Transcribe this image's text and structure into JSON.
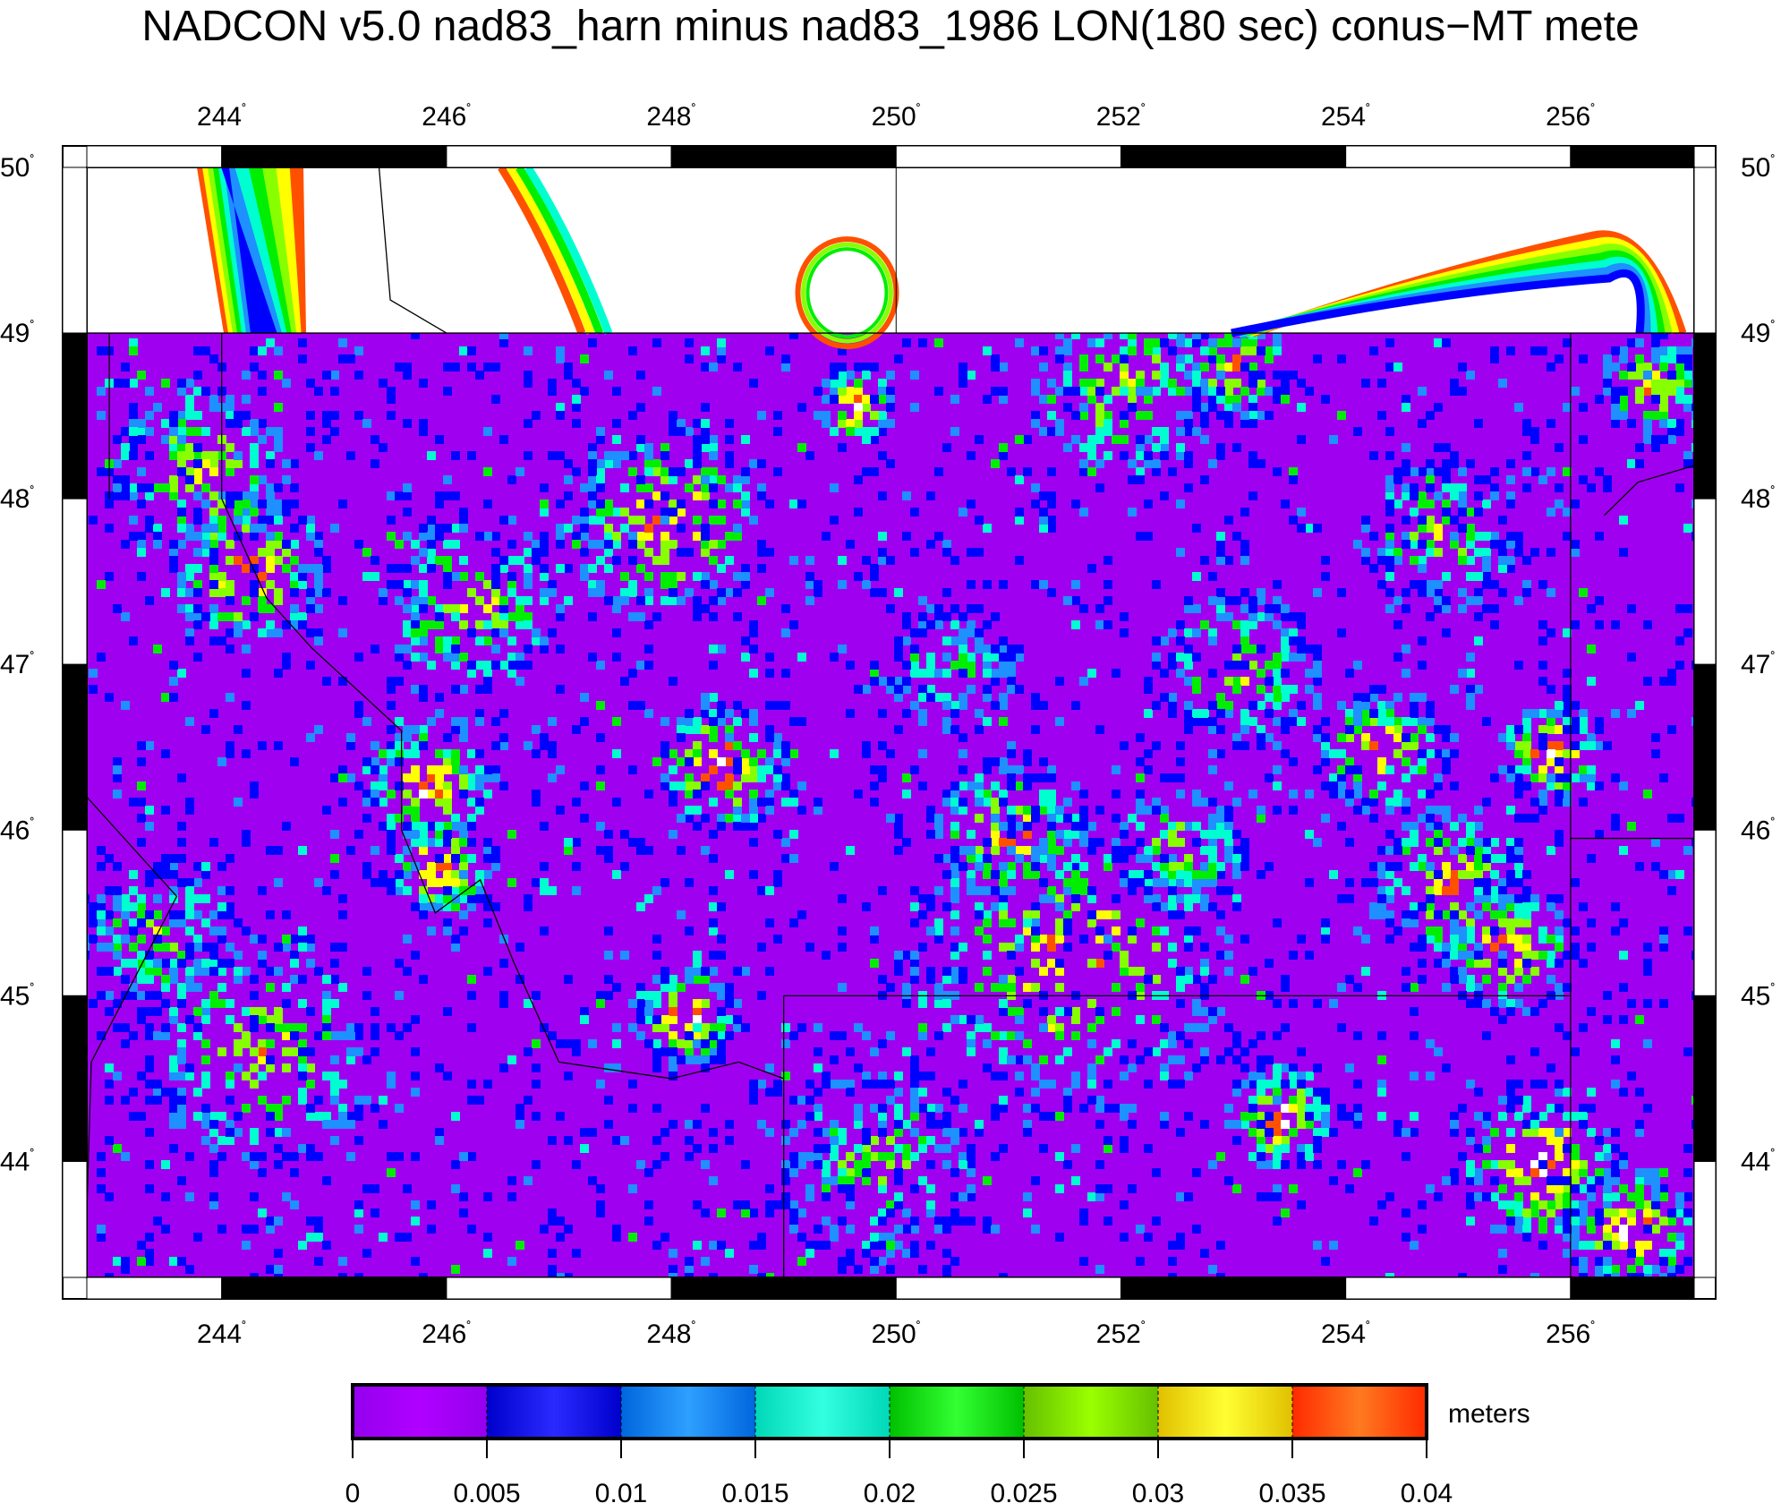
{
  "title": "NADCON v5.0 nad83_harn minus nad83_1986 LON(180 sec) conus−MT mete",
  "map": {
    "lon_range": [
      242.8,
      257.1
    ],
    "lat_range": [
      43.3,
      50.0
    ],
    "data_lat_top": 49.0,
    "lon_ticks": [
      {
        "value": 244,
        "label": "244"
      },
      {
        "value": 246,
        "label": "246"
      },
      {
        "value": 248,
        "label": "248"
      },
      {
        "value": 250,
        "label": "250"
      },
      {
        "value": 252,
        "label": "252"
      },
      {
        "value": 254,
        "label": "254"
      },
      {
        "value": 256,
        "label": "256"
      }
    ],
    "lat_ticks": [
      {
        "value": 50,
        "label": "50"
      },
      {
        "value": 49,
        "label": "49"
      },
      {
        "value": 48,
        "label": "48"
      },
      {
        "value": 47,
        "label": "47"
      },
      {
        "value": 46,
        "label": "46"
      },
      {
        "value": 45,
        "label": "45"
      },
      {
        "value": 44,
        "label": "44"
      }
    ],
    "degree_symbol": "˚"
  },
  "colorbar": {
    "unit_label": "meters",
    "ticks": [
      "0",
      "0.005",
      "0.01",
      "0.015",
      "0.02",
      "0.025",
      "0.03",
      "0.035",
      "0.04"
    ],
    "colors": [
      [
        "#9400ee",
        "#b000ff"
      ],
      [
        "#0000cc",
        "#2a2aff"
      ],
      [
        "#0066dd",
        "#2ea0ff"
      ],
      [
        "#00d8b8",
        "#33ffe0"
      ],
      [
        "#00c000",
        "#33ff33"
      ],
      [
        "#66c000",
        "#9aff00"
      ],
      [
        "#e0c000",
        "#ffff33"
      ],
      [
        "#ff2a00",
        "#ff7a20"
      ]
    ]
  },
  "field_colors": {
    "background": "#a000f0",
    "levels": [
      "#0000ff",
      "#1e90ff",
      "#00ffd0",
      "#00ee00",
      "#88ff00",
      "#ffff00",
      "#ff5000",
      "#ffffff"
    ]
  }
}
